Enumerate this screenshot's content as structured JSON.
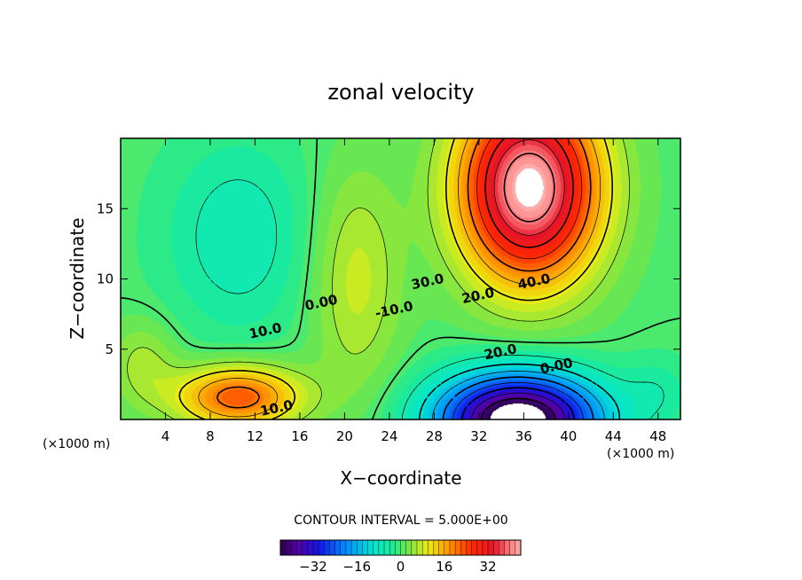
{
  "chart_data": {
    "type": "heatmap",
    "title": "zonal velocity",
    "xlabel": "X−coordinate",
    "ylabel": "Z−coordinate",
    "x_unit_left": "(×1000 m)",
    "x_unit_right": "(×1000 m)",
    "xlim": [
      0,
      50
    ],
    "ylim": [
      0,
      20
    ],
    "xticks": [
      4,
      8,
      12,
      16,
      20,
      24,
      28,
      32,
      36,
      40,
      44,
      48
    ],
    "yticks": [
      5,
      10,
      15
    ],
    "contour_interval_text": "CONTOUR INTERVAL = 5.000E+00",
    "contour_interval": 5,
    "colorbar": {
      "ticks": [
        -32,
        -16,
        0,
        16,
        32
      ],
      "range": [
        -44,
        44
      ]
    },
    "field_features": [
      {
        "kind": "jet_core",
        "x": 36,
        "z": 15.5,
        "value": 42
      },
      {
        "kind": "negative_core",
        "x": 36,
        "z": 0.5,
        "value": -40
      },
      {
        "kind": "low_level_max",
        "x": 10,
        "z": 1.5,
        "value": 22
      },
      {
        "kind": "weak_negative",
        "x": 10,
        "z": 13,
        "value": -6
      }
    ],
    "contour_labels": [
      "0.00",
      "10.0",
      "20.0",
      "30.0",
      "40.0",
      "10.0",
      "20.0",
      "0.00",
      "-10.0"
    ]
  },
  "colors": {
    "axis": "#000000",
    "background": "#ffffff"
  }
}
